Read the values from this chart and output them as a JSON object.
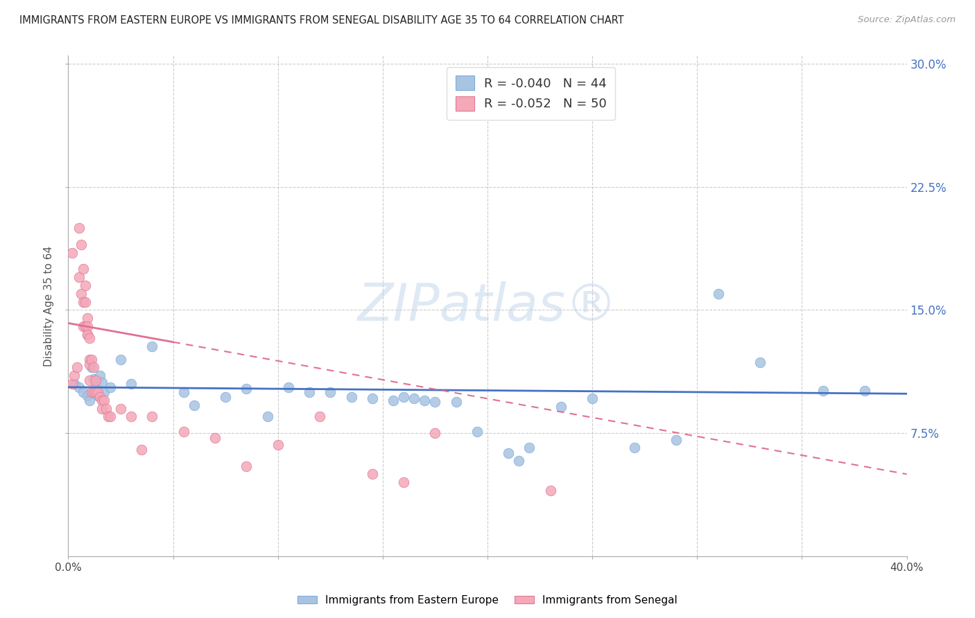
{
  "title": "IMMIGRANTS FROM EASTERN EUROPE VS IMMIGRANTS FROM SENEGAL DISABILITY AGE 35 TO 64 CORRELATION CHART",
  "source": "Source: ZipAtlas.com",
  "ylabel": "Disability Age 35 to 64",
  "xlim": [
    0.0,
    0.4
  ],
  "ylim": [
    0.0,
    0.305
  ],
  "xticks": [
    0.0,
    0.05,
    0.1,
    0.15,
    0.2,
    0.25,
    0.3,
    0.35,
    0.4
  ],
  "xticklabels_show": [
    "0.0%",
    "",
    "",
    "",
    "",
    "",
    "",
    "",
    "40.0%"
  ],
  "yticks": [
    0.075,
    0.15,
    0.225,
    0.3
  ],
  "yticklabels": [
    "7.5%",
    "15.0%",
    "22.5%",
    "30.0%"
  ],
  "R_blue": -0.04,
  "N_blue": 44,
  "R_pink": -0.052,
  "N_pink": 50,
  "blue_scatter_color": "#a8c4e0",
  "blue_scatter_edge": "#7aabe0",
  "pink_scatter_color": "#f4a8b8",
  "pink_scatter_edge": "#e07898",
  "blue_line_color": "#4472c4",
  "pink_line_color": "#e07090",
  "grid_color": "#cccccc",
  "watermark": "ZIPatlas®",
  "legend_label_blue": "Immigrants from Eastern Europe",
  "legend_label_pink": "Immigrants from Senegal",
  "blue_line_start_y": 0.103,
  "blue_line_end_y": 0.099,
  "pink_line_start_y": 0.142,
  "pink_line_end_y": 0.05,
  "blue_scatter_x": [
    0.003,
    0.005,
    0.007,
    0.009,
    0.01,
    0.011,
    0.012,
    0.013,
    0.014,
    0.015,
    0.016,
    0.017,
    0.02,
    0.025,
    0.03,
    0.04,
    0.055,
    0.06,
    0.075,
    0.085,
    0.095,
    0.105,
    0.115,
    0.125,
    0.135,
    0.145,
    0.155,
    0.16,
    0.165,
    0.17,
    0.175,
    0.185,
    0.195,
    0.21,
    0.215,
    0.22,
    0.235,
    0.25,
    0.27,
    0.29,
    0.31,
    0.33,
    0.36,
    0.38
  ],
  "blue_scatter_y": [
    0.105,
    0.103,
    0.1,
    0.098,
    0.095,
    0.115,
    0.108,
    0.105,
    0.098,
    0.11,
    0.106,
    0.1,
    0.103,
    0.12,
    0.105,
    0.128,
    0.1,
    0.092,
    0.097,
    0.102,
    0.085,
    0.103,
    0.1,
    0.1,
    0.097,
    0.096,
    0.095,
    0.097,
    0.096,
    0.095,
    0.094,
    0.094,
    0.076,
    0.063,
    0.058,
    0.066,
    0.091,
    0.096,
    0.066,
    0.071,
    0.16,
    0.118,
    0.101,
    0.101
  ],
  "pink_scatter_x": [
    0.002,
    0.003,
    0.004,
    0.005,
    0.005,
    0.006,
    0.006,
    0.007,
    0.007,
    0.007,
    0.008,
    0.008,
    0.008,
    0.009,
    0.009,
    0.009,
    0.009,
    0.01,
    0.01,
    0.01,
    0.01,
    0.011,
    0.011,
    0.012,
    0.012,
    0.013,
    0.013,
    0.014,
    0.015,
    0.016,
    0.016,
    0.017,
    0.018,
    0.019,
    0.02,
    0.025,
    0.03,
    0.035,
    0.04,
    0.055,
    0.07,
    0.085,
    0.1,
    0.12,
    0.145,
    0.16,
    0.175,
    0.2,
    0.23,
    0.002
  ],
  "pink_scatter_y": [
    0.105,
    0.11,
    0.115,
    0.2,
    0.17,
    0.19,
    0.16,
    0.175,
    0.155,
    0.14,
    0.165,
    0.155,
    0.14,
    0.135,
    0.145,
    0.14,
    0.135,
    0.133,
    0.12,
    0.117,
    0.107,
    0.12,
    0.1,
    0.115,
    0.1,
    0.107,
    0.1,
    0.1,
    0.097,
    0.095,
    0.09,
    0.095,
    0.09,
    0.085,
    0.085,
    0.09,
    0.085,
    0.065,
    0.085,
    0.076,
    0.072,
    0.055,
    0.068,
    0.085,
    0.05,
    0.045,
    0.075,
    0.27,
    0.04,
    0.185
  ]
}
